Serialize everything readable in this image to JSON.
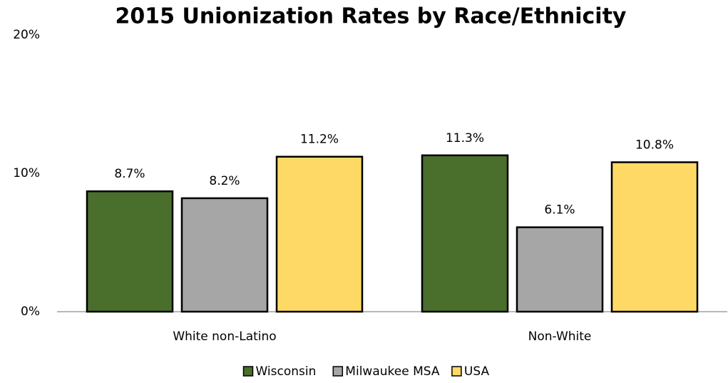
{
  "chart_data": {
    "type": "bar",
    "title": "2015 Unionization Rates by Race/Ethnicity",
    "categories": [
      "White non-Latino",
      "Non-White"
    ],
    "series": [
      {
        "name": "Wisconsin",
        "color": "#4a6e2c",
        "values": [
          8.7,
          11.3
        ],
        "value_labels": [
          "8.7%",
          "11.3%"
        ]
      },
      {
        "name": "Milwaukee MSA",
        "color": "#a6a6a6",
        "values": [
          8.2,
          6.1
        ],
        "value_labels": [
          "8.2%",
          "6.1%"
        ]
      },
      {
        "name": "USA",
        "color": "#ffd966",
        "values": [
          11.2,
          10.8
        ],
        "value_labels": [
          "11.2%",
          "10.8%"
        ]
      }
    ],
    "ylim": [
      0,
      20
    ],
    "yticks": [
      {
        "value": 0,
        "label": "0%"
      },
      {
        "value": 10,
        "label": "10%"
      },
      {
        "value": 20,
        "label": "20%"
      }
    ],
    "grid": false,
    "legend": "bottom"
  }
}
